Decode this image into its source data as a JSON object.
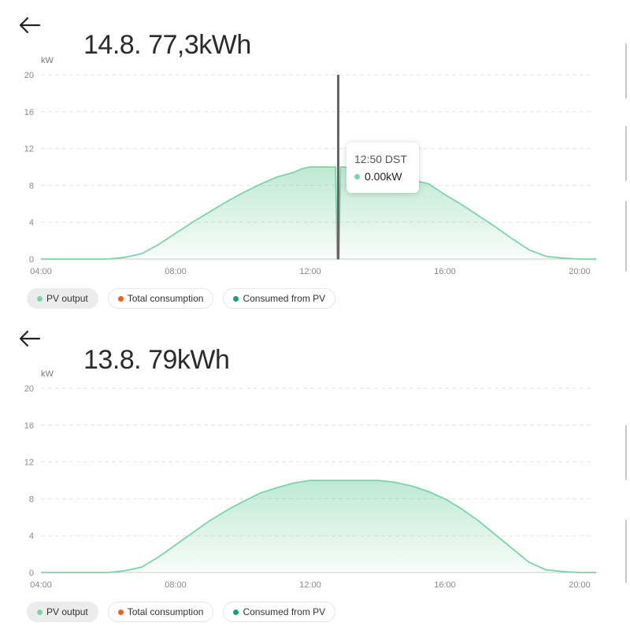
{
  "colors": {
    "pv_output": "#7dd3a8",
    "total_consumption": "#e8641e",
    "consumed_from_pv": "#1f9e6e",
    "cursor": "#666666"
  },
  "icons": {
    "back": "arrow-left-icon"
  },
  "panels": [
    {
      "title": "14.8. 77,3kWh",
      "unit": "kW",
      "tooltip": {
        "title": "12:50 DST",
        "value": "0.00kW"
      },
      "legend": [
        {
          "label": "PV output",
          "color": "#7dd3a8",
          "active": true
        },
        {
          "label": "Total consumption",
          "color": "#e8641e",
          "active": false
        },
        {
          "label": "Consumed from PV",
          "color": "#1f9e6e",
          "active": false
        }
      ]
    },
    {
      "title": "13.8. 79kWh",
      "unit": "kW",
      "legend": [
        {
          "label": "PV output",
          "color": "#7dd3a8",
          "active": true
        },
        {
          "label": "Total consumption",
          "color": "#e8641e",
          "active": false
        },
        {
          "label": "Consumed from PV",
          "color": "#1f9e6e",
          "active": false
        }
      ]
    }
  ],
  "chart_data": [
    {
      "type": "area",
      "ylabel": "kW",
      "ylim": [
        0,
        20
      ],
      "yticks": [
        "0",
        "4",
        "8",
        "12",
        "16",
        "20"
      ],
      "xticks": [
        "04:00",
        "08:00",
        "12:00",
        "16:00",
        "20:00"
      ],
      "xlim_hours": [
        4,
        20.5
      ],
      "cursor_hour": 12.83,
      "series": [
        {
          "name": "PV output",
          "x": [
            4,
            6,
            6.5,
            7,
            7.5,
            8,
            8.5,
            9,
            9.5,
            10,
            10.5,
            11,
            11.5,
            11.75,
            12,
            12.5,
            12.75,
            12.8,
            12.85,
            12.9,
            13,
            13.5,
            14,
            14.5,
            15,
            15.5,
            16,
            16.5,
            17,
            17.5,
            18,
            18.5,
            19,
            19.5,
            20,
            20.5
          ],
          "y": [
            0,
            0,
            0.2,
            0.6,
            1.6,
            2.8,
            4.0,
            5.1,
            6.2,
            7.2,
            8.1,
            8.9,
            9.4,
            9.8,
            10.0,
            10.0,
            10.0,
            0.0,
            0.0,
            10.0,
            10.0,
            9.6,
            9.2,
            8.9,
            8.6,
            8.2,
            7.0,
            5.9,
            4.7,
            3.5,
            2.2,
            1.0,
            0.3,
            0.1,
            0,
            0
          ]
        }
      ]
    },
    {
      "type": "area",
      "ylabel": "kW",
      "ylim": [
        0,
        20
      ],
      "yticks": [
        "0",
        "4",
        "8",
        "12",
        "16",
        "20"
      ],
      "xticks": [
        "04:00",
        "08:00",
        "12:00",
        "16:00",
        "20:00"
      ],
      "xlim_hours": [
        4,
        20.5
      ],
      "series": [
        {
          "name": "PV output",
          "x": [
            4,
            6,
            6.5,
            7,
            7.5,
            8,
            8.5,
            9,
            9.5,
            10,
            10.5,
            11,
            11.5,
            12,
            12.5,
            13,
            13.5,
            14,
            14.5,
            15,
            15.5,
            16,
            16.5,
            17,
            17.5,
            18,
            18.5,
            19,
            19.5,
            20,
            20.5
          ],
          "y": [
            0,
            0,
            0.2,
            0.6,
            1.7,
            3.0,
            4.3,
            5.6,
            6.7,
            7.7,
            8.6,
            9.2,
            9.7,
            10.0,
            10.0,
            10.0,
            10.0,
            10.0,
            9.8,
            9.4,
            8.8,
            8.0,
            6.9,
            5.6,
            4.1,
            2.6,
            1.1,
            0.3,
            0.1,
            0,
            0
          ]
        }
      ]
    }
  ]
}
